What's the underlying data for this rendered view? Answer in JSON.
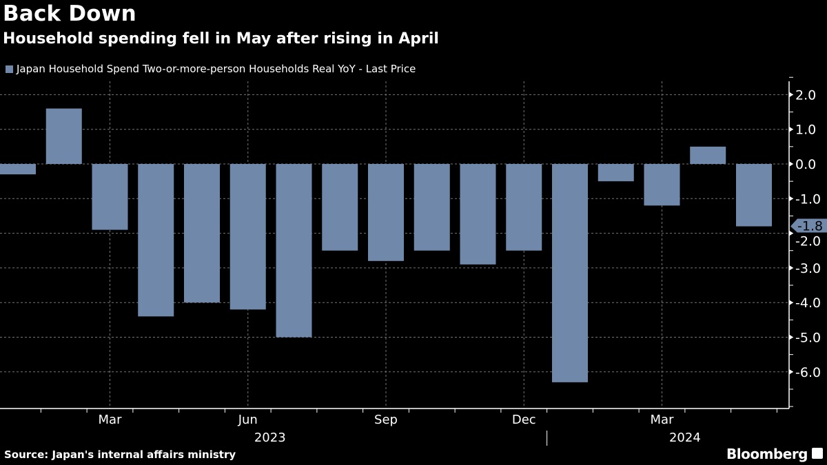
{
  "header": {
    "title": "Back Down",
    "subtitle": "Household spending fell in May after rising in April"
  },
  "footer": {
    "source": "Source: Japan's internal affairs ministry",
    "brand": "Bloomberg"
  },
  "chart_data": {
    "type": "bar",
    "title": "Back Down",
    "subtitle": "Household spending fell in May after rising in April",
    "legend": [
      {
        "label": "Japan Household Spend Two-or-more-person Households Real YoY - Last Price",
        "color": "#7089ab"
      }
    ],
    "legend_placement": "top-left",
    "categories": [
      "Jan 2023",
      "Feb 2023",
      "Mar 2023",
      "Apr 2023",
      "May 2023",
      "Jun 2023",
      "Jul 2023",
      "Aug 2023",
      "Sep 2023",
      "Oct 2023",
      "Nov 2023",
      "Dec 2023",
      "Jan 2024",
      "Feb 2024",
      "Mar 2024",
      "Apr 2024",
      "May 2024"
    ],
    "values": [
      -0.3,
      1.6,
      -1.9,
      -4.4,
      -4.0,
      -4.2,
      -5.0,
      -2.5,
      -2.8,
      -2.5,
      -2.9,
      -2.5,
      -6.3,
      -0.5,
      -1.2,
      0.5,
      -1.8
    ],
    "ylim": [
      -7,
      2.3
    ],
    "yticks": [
      "2.0",
      "1.0",
      "0.0",
      "-1.0",
      "-2.0",
      "-3.0",
      "-4.0",
      "-5.0",
      "-6.0"
    ],
    "xtick_labels": [
      {
        "label": "Mar",
        "index": 2
      },
      {
        "label": "Jun",
        "index": 5
      },
      {
        "label": "Sep",
        "index": 8
      },
      {
        "label": "Dec",
        "index": 11
      },
      {
        "label": "Mar",
        "index": 14
      }
    ],
    "year_labels": [
      {
        "label": "2023",
        "index": 5
      },
      {
        "label": "2024",
        "index": 14.5
      }
    ],
    "last_value_label": "-1.8",
    "y_axis_side": "right",
    "grid": true,
    "bar_color": "#7089ab"
  }
}
